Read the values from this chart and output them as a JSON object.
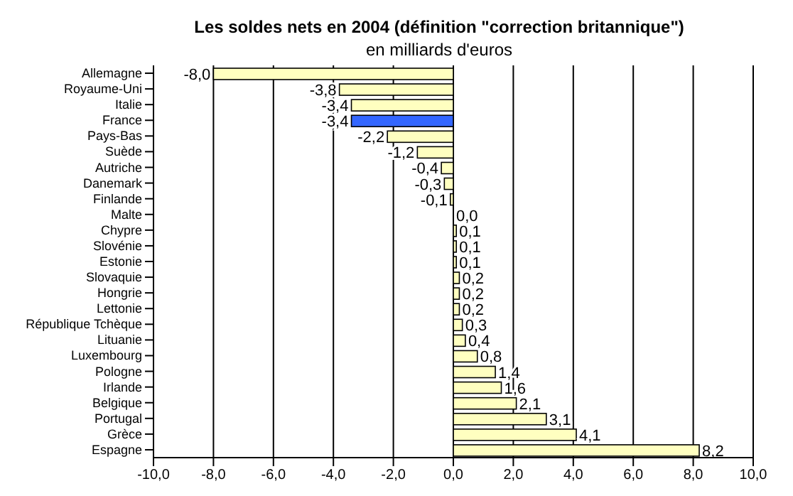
{
  "chart_data": {
    "type": "bar",
    "orientation": "horizontal",
    "title": "Les soldes nets en 2004 (définition \"correction britannique\")",
    "subtitle": "en milliards d'euros",
    "categories": [
      "Allemagne",
      "Royaume-Uni",
      "Italie",
      "France",
      "Pays-Bas",
      "Suède",
      "Autriche",
      "Danemark",
      "Finlande",
      "Malte",
      "Chypre",
      "Slovénie",
      "Estonie",
      "Slovaquie",
      "Hongrie",
      "Lettonie",
      "République Tchèque",
      "Lituanie",
      "Luxembourg",
      "Pologne",
      "Irlande",
      "Belgique",
      "Portugal",
      "Grèce",
      "Espagne"
    ],
    "values": [
      -8.0,
      -3.8,
      -3.4,
      -3.4,
      -2.2,
      -1.2,
      -0.4,
      -0.3,
      -0.1,
      0.0,
      0.1,
      0.1,
      0.1,
      0.2,
      0.2,
      0.2,
      0.3,
      0.4,
      0.8,
      1.4,
      1.6,
      2.1,
      3.1,
      4.1,
      8.2
    ],
    "value_labels": [
      "-8,0",
      "-3,8",
      "-3,4",
      "-3,4",
      "-2,2",
      "-1,2",
      "-0,4",
      "-0,3",
      "-0,1",
      "0,0",
      "0,1",
      "0,1",
      "0,1",
      "0,2",
      "0,2",
      "0,2",
      "0,3",
      "0,4",
      "0,8",
      "1,4",
      "1,6",
      "2,1",
      "3,1",
      "4,1",
      "8,2"
    ],
    "colors": [
      "#ffffc0",
      "#ffffc0",
      "#ffffc0",
      "#3366ff",
      "#ffffc0",
      "#ffffc0",
      "#ffffc0",
      "#ffffc0",
      "#ffffc0",
      "#ffffc0",
      "#ffffc0",
      "#ffffc0",
      "#ffffc0",
      "#ffffc0",
      "#ffffc0",
      "#ffffc0",
      "#ffffc0",
      "#ffffc0",
      "#ffffc0",
      "#ffffc0",
      "#ffffc0",
      "#ffffc0",
      "#ffffc0",
      "#ffffc0",
      "#ffffc0"
    ],
    "xlim": [
      -10,
      10
    ],
    "xticks": [
      {
        "value": -10,
        "label": "-10,0"
      },
      {
        "value": -8,
        "label": "-8,0"
      },
      {
        "value": -6,
        "label": "-6,0"
      },
      {
        "value": -4,
        "label": "-4,0"
      },
      {
        "value": -2,
        "label": "-2,0"
      },
      {
        "value": 0,
        "label": "0,0"
      },
      {
        "value": 2,
        "label": "2,0"
      },
      {
        "value": 4,
        "label": "4,0"
      },
      {
        "value": 6,
        "label": "6,0"
      },
      {
        "value": 8,
        "label": "8,0"
      },
      {
        "value": 10,
        "label": "10,0"
      }
    ],
    "grid": "x",
    "legend": false
  }
}
